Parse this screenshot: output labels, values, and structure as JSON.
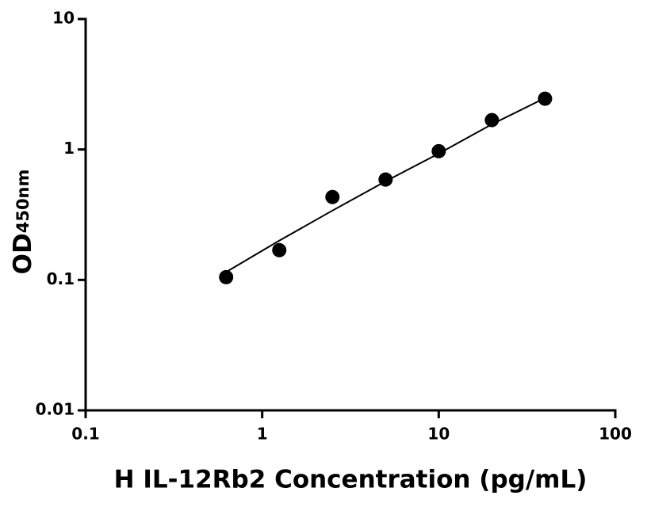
{
  "chart_data": {
    "type": "scatter",
    "xlabel": "H IL-12Rb2 Concentration (pg/mL)",
    "ylabel": "OD",
    "ylabel_sub": "450nm",
    "xscale": "log",
    "yscale": "log",
    "xlim": [
      0.1,
      100
    ],
    "xticks": [
      0.1,
      1,
      10,
      100
    ],
    "ylim": [
      0.01,
      10
    ],
    "yticks": [
      0.01,
      0.1,
      1,
      10
    ],
    "series": [
      {
        "color": "#000000",
        "x": [
          0.625,
          1.25,
          2.5,
          5,
          10,
          20,
          40
        ],
        "values": [
          0.105,
          0.169,
          0.432,
          0.588,
          0.97,
          1.68,
          2.45
        ]
      }
    ],
    "curve": {
      "color": "#000000",
      "x": [
        0.625,
        1.25,
        2.5,
        5,
        10,
        20,
        40
      ],
      "values": [
        0.115,
        0.2,
        0.34,
        0.57,
        0.93,
        1.56,
        2.48
      ]
    }
  }
}
